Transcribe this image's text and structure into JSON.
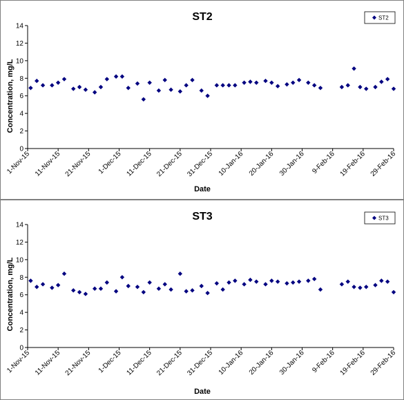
{
  "chart_data": [
    {
      "type": "scatter",
      "title": "ST2",
      "xlabel": "Date",
      "ylabel": "Concentration, mg/L",
      "ylim": [
        0,
        14
      ],
      "y_ticks": [
        0,
        2,
        4,
        6,
        8,
        10,
        12,
        14
      ],
      "xlim": [
        "2015-11-01",
        "2016-02-29"
      ],
      "x_tick_labels": [
        "1-Nov-15",
        "11-Nov-15",
        "21-Nov-15",
        "1-Dec-15",
        "11-Dec-15",
        "21-Dec-15",
        "31-Dec-15",
        "10-Jan-16",
        "20-Jan-16",
        "30-Jan-16",
        "9-Feb-16",
        "19-Feb-16",
        "29-Feb-16"
      ],
      "x_tick_dates": [
        "2015-11-01",
        "2015-11-11",
        "2015-11-21",
        "2015-12-01",
        "2015-12-11",
        "2015-12-21",
        "2015-12-31",
        "2016-01-10",
        "2016-01-20",
        "2016-01-30",
        "2016-02-09",
        "2016-02-19",
        "2016-02-29"
      ],
      "grid": false,
      "legend": "top-right",
      "series": [
        {
          "name": "ST2",
          "color": "#000080",
          "marker": "diamond",
          "points": [
            [
              "2015-11-02",
              6.9
            ],
            [
              "2015-11-04",
              7.7
            ],
            [
              "2015-11-06",
              7.2
            ],
            [
              "2015-11-09",
              7.2
            ],
            [
              "2015-11-11",
              7.5
            ],
            [
              "2015-11-13",
              7.9
            ],
            [
              "2015-11-16",
              6.8
            ],
            [
              "2015-11-18",
              7.0
            ],
            [
              "2015-11-20",
              6.7
            ],
            [
              "2015-11-23",
              6.4
            ],
            [
              "2015-11-25",
              7.0
            ],
            [
              "2015-11-27",
              7.9
            ],
            [
              "2015-11-30",
              8.2
            ],
            [
              "2015-12-02",
              8.2
            ],
            [
              "2015-12-04",
              6.9
            ],
            [
              "2015-12-07",
              7.4
            ],
            [
              "2015-12-09",
              5.6
            ],
            [
              "2015-12-11",
              7.5
            ],
            [
              "2015-12-14",
              6.6
            ],
            [
              "2015-12-16",
              7.8
            ],
            [
              "2015-12-18",
              6.7
            ],
            [
              "2015-12-21",
              6.5
            ],
            [
              "2015-12-23",
              7.2
            ],
            [
              "2015-12-25",
              7.8
            ],
            [
              "2015-12-28",
              6.6
            ],
            [
              "2015-12-30",
              6.0
            ],
            [
              "2016-01-02",
              7.2
            ],
            [
              "2016-01-04",
              7.2
            ],
            [
              "2016-01-06",
              7.2
            ],
            [
              "2016-01-08",
              7.2
            ],
            [
              "2016-01-11",
              7.5
            ],
            [
              "2016-01-13",
              7.6
            ],
            [
              "2016-01-15",
              7.5
            ],
            [
              "2016-01-18",
              7.7
            ],
            [
              "2016-01-20",
              7.5
            ],
            [
              "2016-01-22",
              7.1
            ],
            [
              "2016-01-25",
              7.3
            ],
            [
              "2016-01-27",
              7.5
            ],
            [
              "2016-01-29",
              7.8
            ],
            [
              "2016-02-01",
              7.5
            ],
            [
              "2016-02-03",
              7.2
            ],
            [
              "2016-02-05",
              6.9
            ],
            [
              "2016-02-12",
              7.0
            ],
            [
              "2016-02-14",
              7.2
            ],
            [
              "2016-02-16",
              9.1
            ],
            [
              "2016-02-18",
              7.0
            ],
            [
              "2016-02-20",
              6.8
            ],
            [
              "2016-02-23",
              7.0
            ],
            [
              "2016-02-25",
              7.6
            ],
            [
              "2016-02-27",
              7.9
            ],
            [
              "2016-02-29",
              6.8
            ]
          ]
        }
      ]
    },
    {
      "type": "scatter",
      "title": "ST3",
      "xlabel": "Date",
      "ylabel": "Concentration, mg/L",
      "ylim": [
        0,
        14
      ],
      "y_ticks": [
        0,
        2,
        4,
        6,
        8,
        10,
        12,
        14
      ],
      "xlim": [
        "2015-11-01",
        "2016-02-29"
      ],
      "x_tick_labels": [
        "1-Nov-15",
        "11-Nov-15",
        "21-Nov-15",
        "1-Dec-15",
        "11-Dec-15",
        "21-Dec-15",
        "31-Dec-15",
        "10-Jan-16",
        "20-Jan-16",
        "30-Jan-16",
        "9-Feb-16",
        "19-Feb-16",
        "29-Feb-16"
      ],
      "x_tick_dates": [
        "2015-11-01",
        "2015-11-11",
        "2015-11-21",
        "2015-12-01",
        "2015-12-11",
        "2015-12-21",
        "2015-12-31",
        "2016-01-10",
        "2016-01-20",
        "2016-01-30",
        "2016-02-09",
        "2016-02-19",
        "2016-02-29"
      ],
      "grid": false,
      "legend": "top-right",
      "series": [
        {
          "name": "ST3",
          "color": "#000080",
          "marker": "diamond",
          "points": [
            [
              "2015-11-02",
              7.6
            ],
            [
              "2015-11-04",
              6.9
            ],
            [
              "2015-11-06",
              7.2
            ],
            [
              "2015-11-09",
              6.8
            ],
            [
              "2015-11-11",
              7.1
            ],
            [
              "2015-11-13",
              8.4
            ],
            [
              "2015-11-16",
              6.5
            ],
            [
              "2015-11-18",
              6.3
            ],
            [
              "2015-11-20",
              6.1
            ],
            [
              "2015-11-23",
              6.7
            ],
            [
              "2015-11-25",
              6.7
            ],
            [
              "2015-11-27",
              7.4
            ],
            [
              "2015-11-30",
              6.4
            ],
            [
              "2015-12-02",
              8.0
            ],
            [
              "2015-12-04",
              7.0
            ],
            [
              "2015-12-07",
              6.9
            ],
            [
              "2015-12-09",
              6.3
            ],
            [
              "2015-12-11",
              7.4
            ],
            [
              "2015-12-14",
              6.7
            ],
            [
              "2015-12-16",
              7.2
            ],
            [
              "2015-12-18",
              6.6
            ],
            [
              "2015-12-21",
              8.4
            ],
            [
              "2015-12-23",
              6.4
            ],
            [
              "2015-12-25",
              6.5
            ],
            [
              "2015-12-28",
              7.0
            ],
            [
              "2015-12-30",
              6.2
            ],
            [
              "2016-01-02",
              7.3
            ],
            [
              "2016-01-04",
              6.6
            ],
            [
              "2016-01-06",
              7.4
            ],
            [
              "2016-01-08",
              7.6
            ],
            [
              "2016-01-11",
              7.2
            ],
            [
              "2016-01-13",
              7.7
            ],
            [
              "2016-01-15",
              7.5
            ],
            [
              "2016-01-18",
              7.2
            ],
            [
              "2016-01-20",
              7.6
            ],
            [
              "2016-01-22",
              7.5
            ],
            [
              "2016-01-25",
              7.3
            ],
            [
              "2016-01-27",
              7.4
            ],
            [
              "2016-01-29",
              7.5
            ],
            [
              "2016-02-01",
              7.6
            ],
            [
              "2016-02-03",
              7.8
            ],
            [
              "2016-02-05",
              6.6
            ],
            [
              "2016-02-12",
              7.2
            ],
            [
              "2016-02-14",
              7.5
            ],
            [
              "2016-02-16",
              6.9
            ],
            [
              "2016-02-18",
              6.8
            ],
            [
              "2016-02-20",
              6.9
            ],
            [
              "2016-02-23",
              7.1
            ],
            [
              "2016-02-25",
              7.6
            ],
            [
              "2016-02-27",
              7.5
            ],
            [
              "2016-02-29",
              6.3
            ]
          ]
        }
      ]
    }
  ]
}
